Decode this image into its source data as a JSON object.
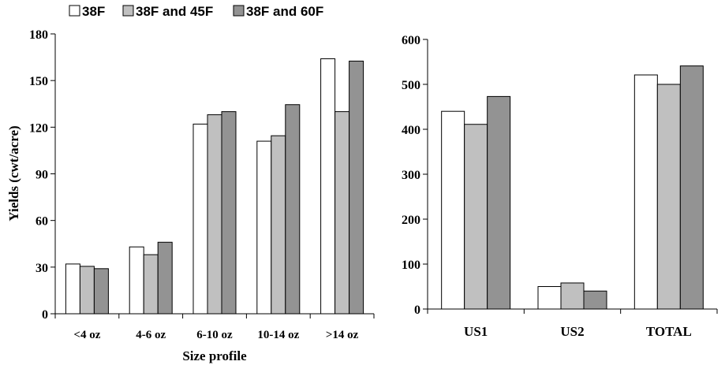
{
  "legend": [
    "38F",
    "38F and 45F",
    "38F and 60F"
  ],
  "colors": {
    "38F": "#ffffff",
    "38F and 45F": "#c0c0c0",
    "38F and 60F": "#939393",
    "outline": "#000000"
  },
  "chart_data": [
    {
      "type": "bar",
      "title": "",
      "xlabel": "Size profile",
      "ylabel": "Yields (cwt/acre)",
      "ylim": [
        0,
        180
      ],
      "yticks": [
        0,
        30,
        60,
        90,
        120,
        150,
        180
      ],
      "categories": [
        "<4 oz",
        "4-6 oz",
        "6-10 oz",
        "10-14 oz",
        ">14 oz"
      ],
      "series": [
        {
          "name": "38F",
          "values": [
            32,
            43,
            122,
            111,
            164
          ]
        },
        {
          "name": "38F and 45F",
          "values": [
            30.5,
            38,
            128,
            114.5,
            130
          ]
        },
        {
          "name": "38F and 60F",
          "values": [
            29,
            46,
            130,
            134.5,
            162.5
          ]
        }
      ],
      "grid": false,
      "legend_position": "top-left"
    },
    {
      "type": "bar",
      "title": "",
      "xlabel": "",
      "ylabel": "",
      "ylim": [
        0,
        600
      ],
      "yticks": [
        0,
        100,
        200,
        300,
        400,
        500,
        600
      ],
      "categories": [
        "US1",
        "US2",
        "TOTAL"
      ],
      "series": [
        {
          "name": "38F",
          "values": [
            440,
            50,
            521
          ]
        },
        {
          "name": "38F and 45F",
          "values": [
            411,
            58,
            500
          ]
        },
        {
          "name": "38F and 60F",
          "values": [
            473,
            40,
            541
          ]
        }
      ],
      "grid": false
    }
  ]
}
